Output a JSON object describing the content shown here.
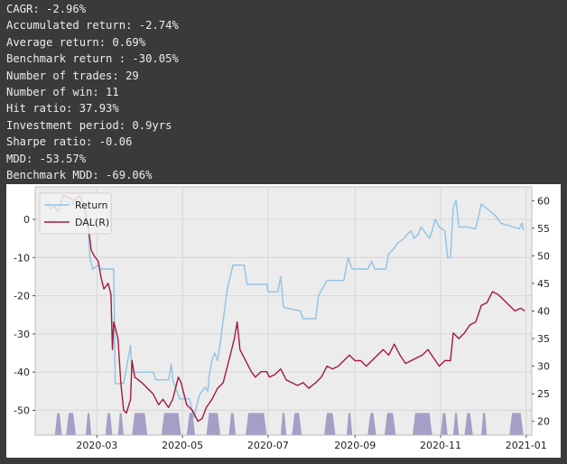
{
  "stats": [
    "CAGR: -2.96%",
    "Accumulated return: -2.74%",
    "Average return: 0.69%",
    "Benchmark return : -30.05%",
    "Number of trades: 29",
    "Number of win: 11",
    "Hit ratio: 37.93%",
    "Investment period: 0.9yrs",
    "Sharpe ratio: -0.06",
    "MDD: -53.57%",
    "Benchmark MDD: -69.06%"
  ],
  "chart_data": {
    "type": "line",
    "title": "",
    "xlabel": "",
    "grid": true,
    "legend": {
      "position": "top-left",
      "entries": [
        "Return",
        "DAL(R)"
      ]
    },
    "x_ticks": [
      "2020-03",
      "2020-05",
      "2020-07",
      "2020-09",
      "2020-11",
      "2021-01"
    ],
    "x_tick_dates": [
      "2020-03-01",
      "2020-05-01",
      "2020-07-01",
      "2020-09-01",
      "2020-11-01",
      "2021-01-01"
    ],
    "xlim": [
      "2020-01-17",
      "2021-01-05"
    ],
    "y_left": {
      "ticks": [
        0,
        -10,
        -20,
        -30,
        -40,
        -50
      ],
      "lim": [
        -56.5,
        8.5
      ]
    },
    "y_right": {
      "ticks": [
        60,
        55,
        50,
        45,
        40,
        35,
        30,
        25,
        20
      ],
      "lim": [
        17.5,
        62.5
      ]
    },
    "series": [
      {
        "name": "Return",
        "axis": "left",
        "color": "#8ec2e6",
        "points": [
          [
            "2020-01-26",
            -0.5
          ],
          [
            "2020-01-28",
            -1
          ],
          [
            "2020-02-04",
            2
          ],
          [
            "2020-02-06",
            5
          ],
          [
            "2020-02-12",
            4
          ],
          [
            "2020-02-14",
            4.5
          ],
          [
            "2020-02-20",
            3.5
          ],
          [
            "2020-02-22",
            0
          ],
          [
            "2020-02-24",
            -3
          ],
          [
            "2020-02-25",
            -10
          ],
          [
            "2020-02-27",
            -13
          ],
          [
            "2020-03-02",
            -12
          ],
          [
            "2020-03-03",
            -13
          ],
          [
            "2020-03-10",
            -13
          ],
          [
            "2020-03-13",
            -13
          ],
          [
            "2020-03-14",
            -43
          ],
          [
            "2020-03-20",
            -43
          ],
          [
            "2020-03-25",
            -33
          ],
          [
            "2020-03-26",
            -40
          ],
          [
            "2020-04-10",
            -40
          ],
          [
            "2020-04-12",
            -42
          ],
          [
            "2020-04-21",
            -42
          ],
          [
            "2020-04-23",
            -38
          ],
          [
            "2020-04-24",
            -42
          ],
          [
            "2020-04-29",
            -47
          ],
          [
            "2020-05-06",
            -47
          ],
          [
            "2020-05-09",
            -52
          ],
          [
            "2020-05-13",
            -46
          ],
          [
            "2020-05-17",
            -44
          ],
          [
            "2020-05-19",
            -45
          ],
          [
            "2020-05-20",
            -41
          ],
          [
            "2020-05-22",
            -37
          ],
          [
            "2020-05-24",
            -35
          ],
          [
            "2020-05-26",
            -37
          ],
          [
            "2020-05-28",
            -32
          ],
          [
            "2020-06-02",
            -18
          ],
          [
            "2020-06-06",
            -12
          ],
          [
            "2020-06-14",
            -12
          ],
          [
            "2020-06-16",
            -17
          ],
          [
            "2020-06-30",
            -17
          ],
          [
            "2020-07-01",
            -19
          ],
          [
            "2020-07-08",
            -19
          ],
          [
            "2020-07-10",
            -15
          ],
          [
            "2020-07-12",
            -23
          ],
          [
            "2020-07-24",
            -24
          ],
          [
            "2020-07-26",
            -26
          ],
          [
            "2020-08-04",
            -26
          ],
          [
            "2020-08-06",
            -20
          ],
          [
            "2020-08-12",
            -16
          ],
          [
            "2020-08-24",
            -16
          ],
          [
            "2020-08-27",
            -10
          ],
          [
            "2020-08-30",
            -13
          ],
          [
            "2020-09-10",
            -13
          ],
          [
            "2020-09-13",
            -11
          ],
          [
            "2020-09-15",
            -13
          ],
          [
            "2020-09-23",
            -13
          ],
          [
            "2020-09-25",
            -9
          ],
          [
            "2020-09-28",
            -8
          ],
          [
            "2020-10-02",
            -6
          ],
          [
            "2020-10-06",
            -5
          ],
          [
            "2020-10-08",
            -4
          ],
          [
            "2020-10-11",
            -3
          ],
          [
            "2020-10-13",
            -5
          ],
          [
            "2020-10-16",
            -4
          ],
          [
            "2020-10-18",
            -2
          ],
          [
            "2020-10-24",
            -5
          ],
          [
            "2020-10-26",
            -3
          ],
          [
            "2020-10-28",
            0
          ],
          [
            "2020-10-31",
            -2
          ],
          [
            "2020-11-04",
            -3
          ],
          [
            "2020-11-06",
            -10
          ],
          [
            "2020-11-08",
            -10
          ],
          [
            "2020-11-10",
            3
          ],
          [
            "2020-11-12",
            5
          ],
          [
            "2020-11-14",
            -2
          ],
          [
            "2020-11-20",
            -2
          ],
          [
            "2020-11-26",
            -2.5
          ],
          [
            "2020-11-30",
            4
          ],
          [
            "2020-12-10",
            1
          ],
          [
            "2020-12-14",
            -1
          ],
          [
            "2020-12-27",
            -2.5
          ],
          [
            "2020-12-29",
            -1
          ],
          [
            "2020-12-30",
            -2.8
          ]
        ]
      },
      {
        "name": "DAL(R)",
        "axis": "right",
        "color": "#a31a3a",
        "points": [
          [
            "2020-01-26",
            59.5
          ],
          [
            "2020-01-28",
            58.5
          ],
          [
            "2020-01-31",
            59
          ],
          [
            "2020-02-02",
            58
          ],
          [
            "2020-02-06",
            61
          ],
          [
            "2020-02-10",
            60.5
          ],
          [
            "2020-02-14",
            60
          ],
          [
            "2020-02-18",
            61
          ],
          [
            "2020-02-22",
            58
          ],
          [
            "2020-02-24",
            55
          ],
          [
            "2020-02-26",
            51
          ],
          [
            "2020-02-28",
            50
          ],
          [
            "2020-03-02",
            49
          ],
          [
            "2020-03-04",
            46
          ],
          [
            "2020-03-06",
            44
          ],
          [
            "2020-03-09",
            45
          ],
          [
            "2020-03-11",
            43
          ],
          [
            "2020-03-12",
            33
          ],
          [
            "2020-03-13",
            38
          ],
          [
            "2020-03-16",
            35
          ],
          [
            "2020-03-18",
            27
          ],
          [
            "2020-03-20",
            22
          ],
          [
            "2020-03-22",
            21.5
          ],
          [
            "2020-03-25",
            24
          ],
          [
            "2020-03-26",
            31
          ],
          [
            "2020-03-28",
            28
          ],
          [
            "2020-04-02",
            27
          ],
          [
            "2020-04-06",
            26
          ],
          [
            "2020-04-10",
            25
          ],
          [
            "2020-04-14",
            23
          ],
          [
            "2020-04-17",
            24
          ],
          [
            "2020-04-21",
            22.5
          ],
          [
            "2020-04-24",
            24
          ],
          [
            "2020-04-28",
            28
          ],
          [
            "2020-04-30",
            27
          ],
          [
            "2020-05-04",
            23
          ],
          [
            "2020-05-08",
            22
          ],
          [
            "2020-05-12",
            20
          ],
          [
            "2020-05-15",
            20.5
          ],
          [
            "2020-05-18",
            22.5
          ],
          [
            "2020-05-22",
            24
          ],
          [
            "2020-05-26",
            26
          ],
          [
            "2020-05-30",
            27
          ],
          [
            "2020-06-04",
            32
          ],
          [
            "2020-06-07",
            35
          ],
          [
            "2020-06-09",
            38
          ],
          [
            "2020-06-11",
            33
          ],
          [
            "2020-06-13",
            32
          ],
          [
            "2020-06-17",
            30
          ],
          [
            "2020-06-19",
            29
          ],
          [
            "2020-06-22",
            28
          ],
          [
            "2020-06-26",
            29
          ],
          [
            "2020-06-30",
            29
          ],
          [
            "2020-07-02",
            28
          ],
          [
            "2020-07-06",
            28.5
          ],
          [
            "2020-07-10",
            29.5
          ],
          [
            "2020-07-14",
            27.5
          ],
          [
            "2020-07-18",
            27
          ],
          [
            "2020-07-22",
            26.5
          ],
          [
            "2020-07-26",
            27
          ],
          [
            "2020-07-30",
            26
          ],
          [
            "2020-08-04",
            27
          ],
          [
            "2020-08-08",
            28
          ],
          [
            "2020-08-12",
            30
          ],
          [
            "2020-08-16",
            29.5
          ],
          [
            "2020-08-20",
            30
          ],
          [
            "2020-08-24",
            31
          ],
          [
            "2020-08-28",
            32
          ],
          [
            "2020-09-01",
            31
          ],
          [
            "2020-09-05",
            31
          ],
          [
            "2020-09-09",
            30
          ],
          [
            "2020-09-13",
            31
          ],
          [
            "2020-09-17",
            32
          ],
          [
            "2020-09-21",
            33
          ],
          [
            "2020-09-25",
            32
          ],
          [
            "2020-09-29",
            34
          ],
          [
            "2020-10-03",
            32
          ],
          [
            "2020-10-07",
            30.5
          ],
          [
            "2020-10-11",
            31
          ],
          [
            "2020-10-15",
            31.5
          ],
          [
            "2020-10-19",
            32
          ],
          [
            "2020-10-23",
            33
          ],
          [
            "2020-10-27",
            31.5
          ],
          [
            "2020-10-31",
            30
          ],
          [
            "2020-11-04",
            31
          ],
          [
            "2020-11-08",
            31
          ],
          [
            "2020-11-10",
            36
          ],
          [
            "2020-11-14",
            35
          ],
          [
            "2020-11-18",
            36
          ],
          [
            "2020-11-22",
            37.5
          ],
          [
            "2020-11-26",
            38
          ],
          [
            "2020-11-30",
            41
          ],
          [
            "2020-12-04",
            41.5
          ],
          [
            "2020-12-08",
            43.5
          ],
          [
            "2020-12-12",
            43
          ],
          [
            "2020-12-16",
            42
          ],
          [
            "2020-12-20",
            41
          ],
          [
            "2020-12-24",
            40
          ],
          [
            "2020-12-28",
            40.5
          ],
          [
            "2020-12-31",
            40
          ]
        ]
      }
    ],
    "position_shading": {
      "color": "#9a90c0",
      "bar_top_value": 21.5,
      "periods": [
        [
          "2020-01-31",
          "2020-02-05"
        ],
        [
          "2020-02-08",
          "2020-02-15"
        ],
        [
          "2020-02-22",
          "2020-02-26"
        ],
        [
          "2020-03-07",
          "2020-03-12"
        ],
        [
          "2020-03-16",
          "2020-03-20"
        ],
        [
          "2020-03-26",
          "2020-04-06"
        ],
        [
          "2020-04-16",
          "2020-04-30"
        ],
        [
          "2020-05-04",
          "2020-05-10"
        ],
        [
          "2020-05-18",
          "2020-05-28"
        ],
        [
          "2020-06-03",
          "2020-06-08"
        ],
        [
          "2020-06-15",
          "2020-06-30"
        ],
        [
          "2020-07-10",
          "2020-07-14"
        ],
        [
          "2020-07-18",
          "2020-07-25"
        ],
        [
          "2020-08-10",
          "2020-08-18"
        ],
        [
          "2020-08-26",
          "2020-08-30"
        ],
        [
          "2020-09-10",
          "2020-09-16"
        ],
        [
          "2020-09-22",
          "2020-09-30"
        ],
        [
          "2020-10-12",
          "2020-10-26"
        ],
        [
          "2020-11-01",
          "2020-11-06"
        ],
        [
          "2020-11-10",
          "2020-11-14"
        ],
        [
          "2020-11-18",
          "2020-11-24"
        ],
        [
          "2020-11-30",
          "2020-12-04"
        ],
        [
          "2020-12-20",
          "2020-12-30"
        ]
      ]
    }
  }
}
